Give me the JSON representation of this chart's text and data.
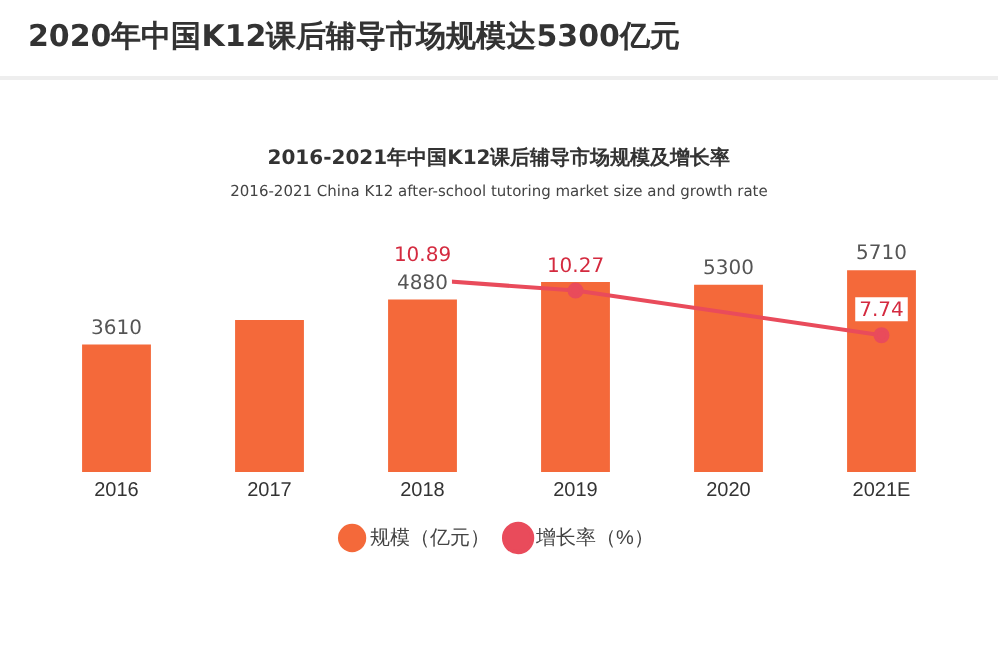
{
  "chart_data": {
    "type": "bar",
    "title": "2020年中国K12课后辅导市场规模达5300亿元",
    "subtitle": "2016-2021年中国K12课后辅导市场规模及增长率",
    "annotations": [
      "2016-2021 China K12 after-school tutoring market size and growth rate"
    ],
    "categories": [
      "2016",
      "2017",
      "2018",
      "2019",
      "2020",
      "2021E"
    ],
    "series": [
      {
        "name": "规模（亿元）",
        "color": "#f4693a",
        "values": [
          3610,
          4300,
          4880,
          5380,
          5300,
          5710
        ],
        "value_labels": [
          "3610",
          null,
          "4880",
          null,
          "5300",
          "5710"
        ]
      },
      {
        "name": "增长率（%）",
        "type": "line",
        "axis": "y2",
        "color": "#e94b5b",
        "values": [
          null,
          null,
          10.89,
          10.27,
          null,
          7.74
        ],
        "value_labels": [
          null,
          null,
          "10.89",
          "10.27",
          null,
          "7.74"
        ]
      }
    ],
    "legend": "bottom",
    "grid": false,
    "tick_labels": "x",
    "marker": "circle"
  }
}
